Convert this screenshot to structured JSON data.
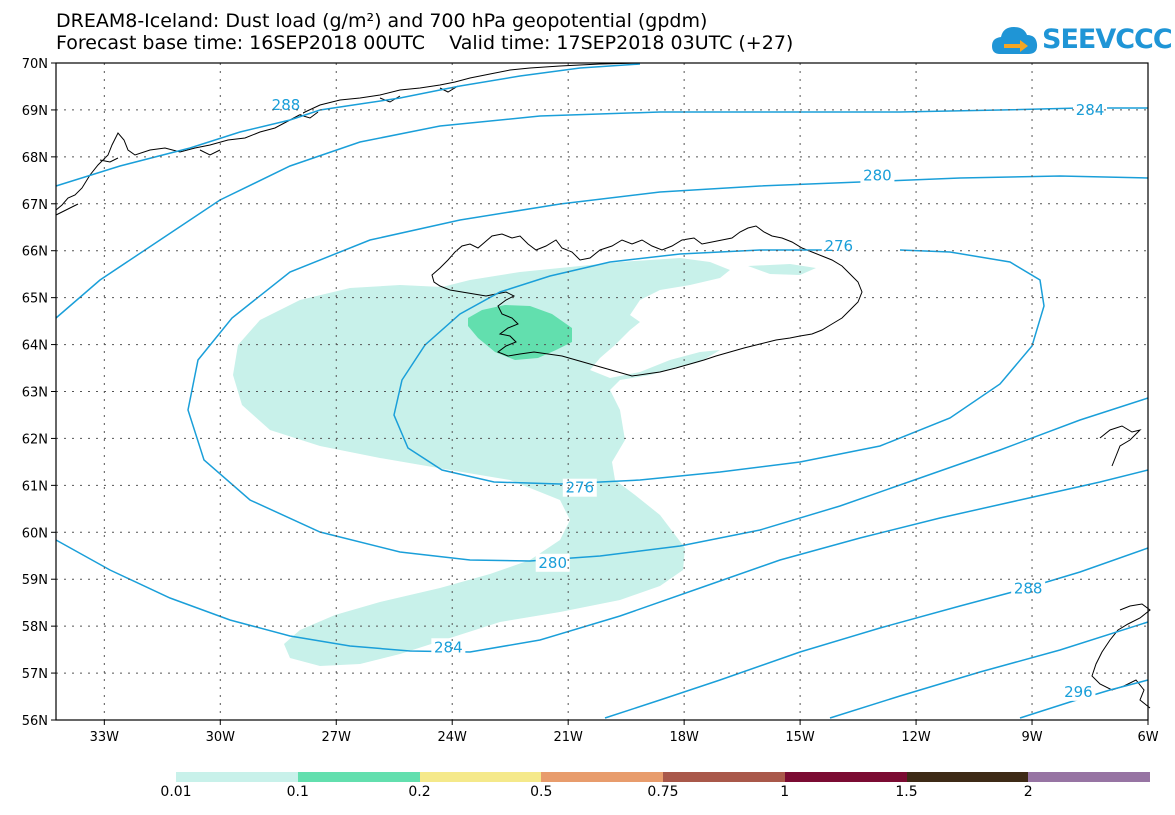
{
  "header": {
    "title_line1": "DREAM8-Iceland: Dust load (g/m²) and 700 hPa geopotential (gpdm)",
    "title_line2": "Forecast base time: 16SEP2018 00UTC    Valid time: 17SEP2018 03UTC (+27)"
  },
  "logo": {
    "text": "SEEVCCC",
    "icon": "cloud-arrow-icon",
    "color": "#1f95d6"
  },
  "map": {
    "lon_range": [
      -34.25,
      -6
    ],
    "lat_range": [
      56,
      70
    ],
    "lon_ticks": [
      {
        "value": -33,
        "label": "33W"
      },
      {
        "value": -30,
        "label": "30W"
      },
      {
        "value": -27,
        "label": "27W"
      },
      {
        "value": -24,
        "label": "24W"
      },
      {
        "value": -21,
        "label": "21W"
      },
      {
        "value": -18,
        "label": "18W"
      },
      {
        "value": -15,
        "label": "15W"
      },
      {
        "value": -12,
        "label": "12W"
      },
      {
        "value": -9,
        "label": "9W"
      },
      {
        "value": -6,
        "label": "6W"
      }
    ],
    "lat_ticks": [
      {
        "value": 70,
        "label": "70N"
      },
      {
        "value": 69,
        "label": "69N"
      },
      {
        "value": 68,
        "label": "68N"
      },
      {
        "value": 67,
        "label": "67N"
      },
      {
        "value": 66,
        "label": "66N"
      },
      {
        "value": 65,
        "label": "65N"
      },
      {
        "value": 64,
        "label": "64N"
      },
      {
        "value": 63,
        "label": "63N"
      },
      {
        "value": 62,
        "label": "62N"
      },
      {
        "value": 61,
        "label": "61N"
      },
      {
        "value": 60,
        "label": "60N"
      },
      {
        "value": 59,
        "label": "59N"
      },
      {
        "value": 58,
        "label": "58N"
      },
      {
        "value": 57,
        "label": "57N"
      },
      {
        "value": 56,
        "label": "56N"
      }
    ],
    "grid": "dotted",
    "contour_color": "#1a9fd9",
    "contour_labels": [
      {
        "text": "288",
        "lon": -28.3,
        "lat": 69.1
      },
      {
        "text": "284",
        "lon": -7.5,
        "lat": 69.0
      },
      {
        "text": "280",
        "lon": -13.0,
        "lat": 67.6
      },
      {
        "text": "276",
        "lon": -14.0,
        "lat": 66.1
      },
      {
        "text": "276",
        "lon": -20.7,
        "lat": 60.95
      },
      {
        "text": "280",
        "lon": -21.4,
        "lat": 59.35
      },
      {
        "text": "284",
        "lon": -24.1,
        "lat": 57.55
      },
      {
        "text": "288",
        "lon": -9.1,
        "lat": 58.8
      },
      {
        "text": "296",
        "lon": -7.8,
        "lat": 56.6
      }
    ]
  },
  "colorbar": {
    "colors": [
      "#c8f1ea",
      "#62dfae",
      "#f5e98a",
      "#e89c6c",
      "#a9584a",
      "#7b0b32",
      "#3e2a16",
      "#9774a3"
    ],
    "labels": [
      "0.01",
      "0.1",
      "0.2",
      "0.5",
      "0.75",
      "1",
      "1.5",
      "2"
    ]
  }
}
